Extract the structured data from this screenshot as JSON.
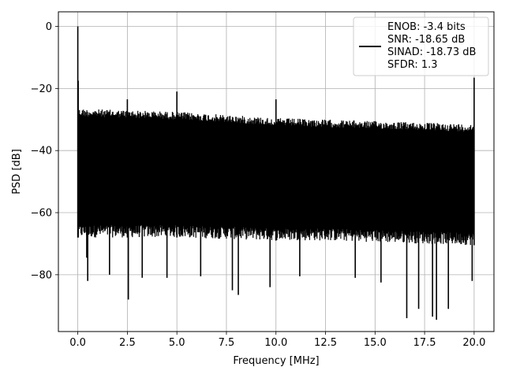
{
  "chart_data": {
    "type": "line",
    "title": "",
    "xlabel": "Frequency [MHz]",
    "ylabel": "PSD [dB]",
    "xlim": [
      -0.98,
      21.0
    ],
    "ylim": [
      -98.3,
      4.7
    ],
    "xticks": [
      0.0,
      2.5,
      5.0,
      7.5,
      10.0,
      12.5,
      15.0,
      17.5,
      20.0
    ],
    "xtick_labels": [
      "0.0",
      "2.5",
      "5.0",
      "7.5",
      "10.0",
      "12.5",
      "15.0",
      "17.5",
      "20.0"
    ],
    "yticks": [
      0,
      -20,
      -40,
      -60,
      -80
    ],
    "ytick_labels": [
      "0",
      "−20",
      "−40",
      "−60",
      "−80"
    ],
    "grid": true,
    "legend": {
      "placement": "top-right",
      "entries": [
        "ENOB: -3.4 bits",
        "SNR: -18.65 dB",
        "SINAD: -18.73 dB",
        "SFDR: 1.3"
      ]
    },
    "series": [
      {
        "color": "#000000",
        "envelope": {
          "x": [
            0.0,
            2.5,
            5.0,
            7.5,
            10.0,
            12.5,
            15.0,
            17.5,
            20.0
          ],
          "upper": [
            -26.5,
            -27.0,
            -27.5,
            -28.5,
            -29.5,
            -30.0,
            -30.5,
            -31.0,
            -31.5
          ],
          "lower": [
            -68.0,
            -68.0,
            -68.0,
            -68.5,
            -69.0,
            -69.0,
            -69.5,
            -70.0,
            -70.5
          ]
        },
        "spurs": [
          {
            "x": 0.0,
            "y": 0.0
          },
          {
            "x": 0.02,
            "y": -17.5
          },
          {
            "x": 2.5,
            "y": -23.5
          },
          {
            "x": 5.0,
            "y": -21.0
          },
          {
            "x": 10.0,
            "y": -23.5
          },
          {
            "x": 20.0,
            "y": -16.5
          }
        ],
        "dips": [
          {
            "x": 0.45,
            "y": -74.5
          },
          {
            "x": 0.5,
            "y": -82.0
          },
          {
            "x": 1.6,
            "y": -80.0
          },
          {
            "x": 2.55,
            "y": -88.0
          },
          {
            "x": 3.25,
            "y": -81.0
          },
          {
            "x": 4.5,
            "y": -81.0
          },
          {
            "x": 6.2,
            "y": -80.5
          },
          {
            "x": 7.8,
            "y": -85.0
          },
          {
            "x": 8.1,
            "y": -86.5
          },
          {
            "x": 9.7,
            "y": -84.0
          },
          {
            "x": 11.2,
            "y": -80.5
          },
          {
            "x": 14.0,
            "y": -81.0
          },
          {
            "x": 15.3,
            "y": -82.5
          },
          {
            "x": 16.6,
            "y": -94.0
          },
          {
            "x": 17.2,
            "y": -91.0
          },
          {
            "x": 17.9,
            "y": -93.5
          },
          {
            "x": 18.1,
            "y": -94.5
          },
          {
            "x": 18.7,
            "y": -91.0
          },
          {
            "x": 19.9,
            "y": -82.0
          }
        ]
      }
    ]
  }
}
